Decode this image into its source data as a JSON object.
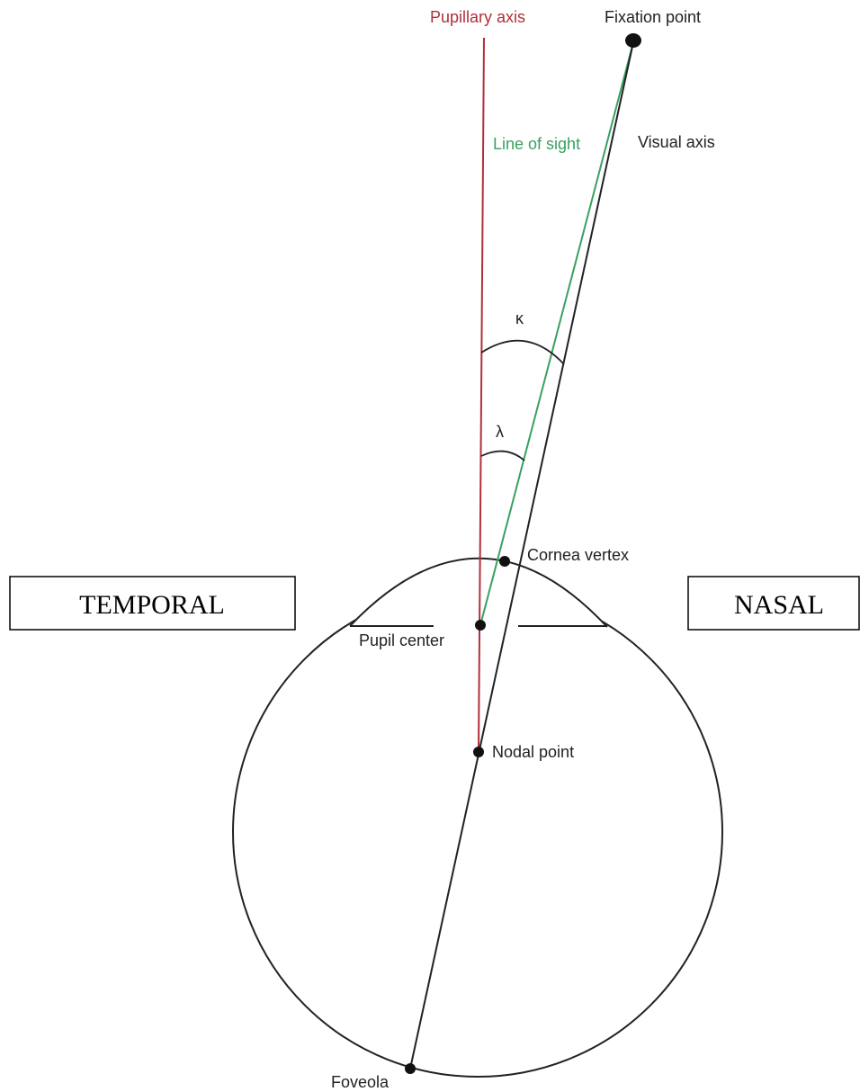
{
  "labels": {
    "pupillary_axis": "Pupillary axis",
    "fixation_point": "Fixation point",
    "line_of_sight": "Line of sight",
    "visual_axis": "Visual axis",
    "kappa": "κ",
    "lambda": "λ",
    "cornea_vertex": "Cornea vertex",
    "pupil_center": "Pupil center",
    "nodal_point": "Nodal point",
    "foveola": "Foveola"
  },
  "boxes": {
    "temporal": "TEMPORAL",
    "nasal": "NASAL"
  }
}
